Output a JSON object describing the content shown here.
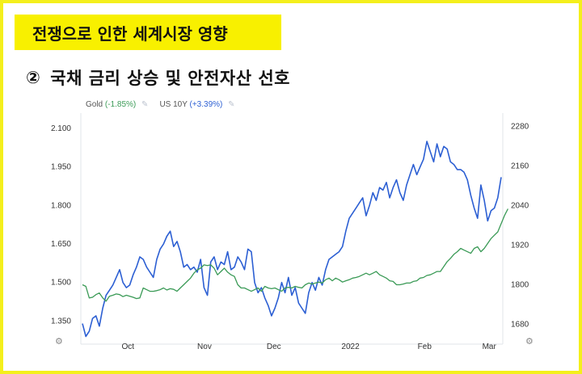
{
  "header": {
    "title": "전쟁으로 인한 세계시장 영향",
    "subtitle_number": "②",
    "subtitle": "국채 금리 상승 및 안전자산 선호"
  },
  "icons": {
    "pin": "pin-icon",
    "settings": "gear-icon"
  },
  "chart_data": {
    "type": "line",
    "x_labels": [
      "Oct",
      "Nov",
      "Dec",
      "2022",
      "Feb",
      "Mar"
    ],
    "left_axis": {
      "ticks": [
        "1.350",
        "1.500",
        "1.650",
        "1.800",
        "1.950",
        "2.100"
      ],
      "ylim": [
        1.26,
        2.16
      ]
    },
    "right_axis": {
      "ticks": [
        "1680",
        "1800",
        "1920",
        "2040",
        "2160",
        "2280"
      ],
      "ylim": [
        1620,
        2320
      ]
    },
    "grid": false,
    "legend_placement": "top-left",
    "series": [
      {
        "name": "US 10Y",
        "change": "(+3.39%)",
        "color": "#2c5fd3",
        "axis": "left",
        "values": [
          1.34,
          1.29,
          1.31,
          1.36,
          1.37,
          1.33,
          1.4,
          1.45,
          1.47,
          1.49,
          1.52,
          1.55,
          1.5,
          1.48,
          1.49,
          1.53,
          1.56,
          1.6,
          1.59,
          1.56,
          1.54,
          1.52,
          1.59,
          1.63,
          1.65,
          1.68,
          1.7,
          1.64,
          1.66,
          1.62,
          1.56,
          1.57,
          1.55,
          1.56,
          1.54,
          1.59,
          1.48,
          1.45,
          1.58,
          1.6,
          1.55,
          1.58,
          1.57,
          1.62,
          1.55,
          1.56,
          1.6,
          1.58,
          1.55,
          1.63,
          1.62,
          1.5,
          1.46,
          1.48,
          1.44,
          1.41,
          1.37,
          1.4,
          1.44,
          1.5,
          1.46,
          1.52,
          1.45,
          1.48,
          1.42,
          1.4,
          1.38,
          1.46,
          1.5,
          1.47,
          1.52,
          1.49,
          1.55,
          1.59,
          1.6,
          1.61,
          1.62,
          1.64,
          1.7,
          1.75,
          1.77,
          1.79,
          1.81,
          1.83,
          1.76,
          1.8,
          1.85,
          1.82,
          1.87,
          1.86,
          1.89,
          1.83,
          1.87,
          1.9,
          1.85,
          1.82,
          1.88,
          1.92,
          1.96,
          1.92,
          1.95,
          1.98,
          2.05,
          2.01,
          1.97,
          2.04,
          1.99,
          2.03,
          2.02,
          1.97,
          1.96,
          1.94,
          1.94,
          1.93,
          1.9,
          1.84,
          1.79,
          1.75,
          1.88,
          1.82,
          1.74,
          1.78,
          1.79,
          1.83,
          1.91
        ]
      },
      {
        "name": "Gold",
        "change": "(-1.85%)",
        "color": "#3a9a56",
        "axis": "right",
        "values": [
          1800,
          1795,
          1760,
          1762,
          1770,
          1775,
          1760,
          1750,
          1765,
          1768,
          1772,
          1770,
          1764,
          1768,
          1765,
          1762,
          1758,
          1760,
          1790,
          1785,
          1780,
          1780,
          1782,
          1785,
          1790,
          1784,
          1788,
          1786,
          1780,
          1790,
          1800,
          1810,
          1820,
          1835,
          1845,
          1850,
          1860,
          1858,
          1860,
          1850,
          1830,
          1840,
          1850,
          1838,
          1830,
          1825,
          1800,
          1790,
          1790,
          1785,
          1780,
          1785,
          1790,
          1780,
          1795,
          1790,
          1788,
          1790,
          1785,
          1780,
          1790,
          1792,
          1790,
          1795,
          1792,
          1790,
          1800,
          1805,
          1802,
          1805,
          1808,
          1805,
          1815,
          1820,
          1812,
          1820,
          1815,
          1808,
          1812,
          1815,
          1820,
          1822,
          1825,
          1830,
          1835,
          1830,
          1835,
          1840,
          1830,
          1825,
          1820,
          1812,
          1810,
          1800,
          1800,
          1802,
          1805,
          1805,
          1810,
          1812,
          1820,
          1822,
          1828,
          1830,
          1835,
          1840,
          1840,
          1855,
          1870,
          1880,
          1892,
          1900,
          1910,
          1905,
          1900,
          1895,
          1910,
          1915,
          1900,
          1910,
          1925,
          1940,
          1950,
          1960,
          1985,
          2010,
          2030
        ]
      }
    ]
  }
}
